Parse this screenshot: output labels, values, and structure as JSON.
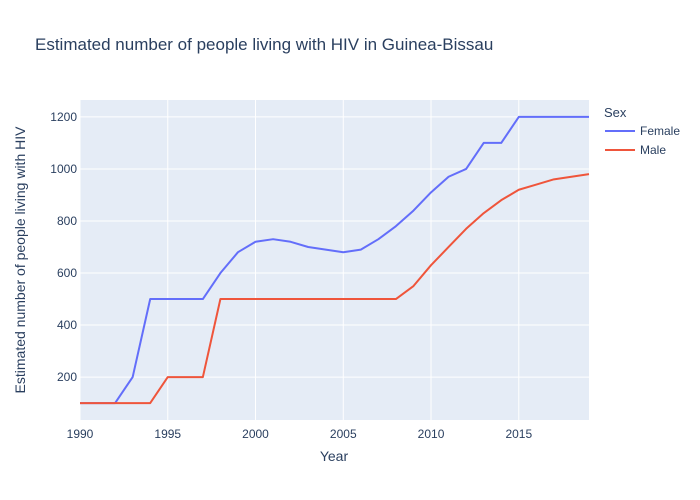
{
  "chart_data": {
    "type": "line",
    "title": "Estimated number of people living with HIV in Guinea-Bissau",
    "xlabel": "Year",
    "ylabel": "Estimated number of people living with HIV",
    "xlim": [
      1990,
      2019
    ],
    "ylim": [
      35,
      1265
    ],
    "x_ticks": [
      1990,
      1995,
      2000,
      2005,
      2010,
      2015
    ],
    "y_ticks": [
      200,
      400,
      600,
      800,
      1000,
      1200
    ],
    "grid": true,
    "plot_background": "#e5ecf6",
    "legend": {
      "title": "Sex",
      "placement": "top-right-outside"
    },
    "x": [
      1990,
      1991,
      1992,
      1993,
      1994,
      1995,
      1996,
      1997,
      1998,
      1999,
      2000,
      2001,
      2002,
      2003,
      2004,
      2005,
      2006,
      2007,
      2008,
      2009,
      2010,
      2011,
      2012,
      2013,
      2014,
      2015,
      2016,
      2017,
      2018,
      2019
    ],
    "series": [
      {
        "name": "Female",
        "color": "#636efa",
        "values": [
          100,
          100,
          100,
          200,
          500,
          500,
          500,
          500,
          600,
          680,
          720,
          730,
          720,
          700,
          690,
          680,
          690,
          730,
          780,
          840,
          910,
          970,
          1000,
          1100,
          1100,
          1200,
          1200,
          1200,
          1200,
          1200
        ]
      },
      {
        "name": "Male",
        "color": "#ef553b",
        "values": [
          100,
          100,
          100,
          100,
          100,
          200,
          200,
          200,
          500,
          500,
          500,
          500,
          500,
          500,
          500,
          500,
          500,
          500,
          500,
          550,
          630,
          700,
          770,
          830,
          880,
          920,
          940,
          960,
          970,
          980
        ]
      }
    ]
  }
}
